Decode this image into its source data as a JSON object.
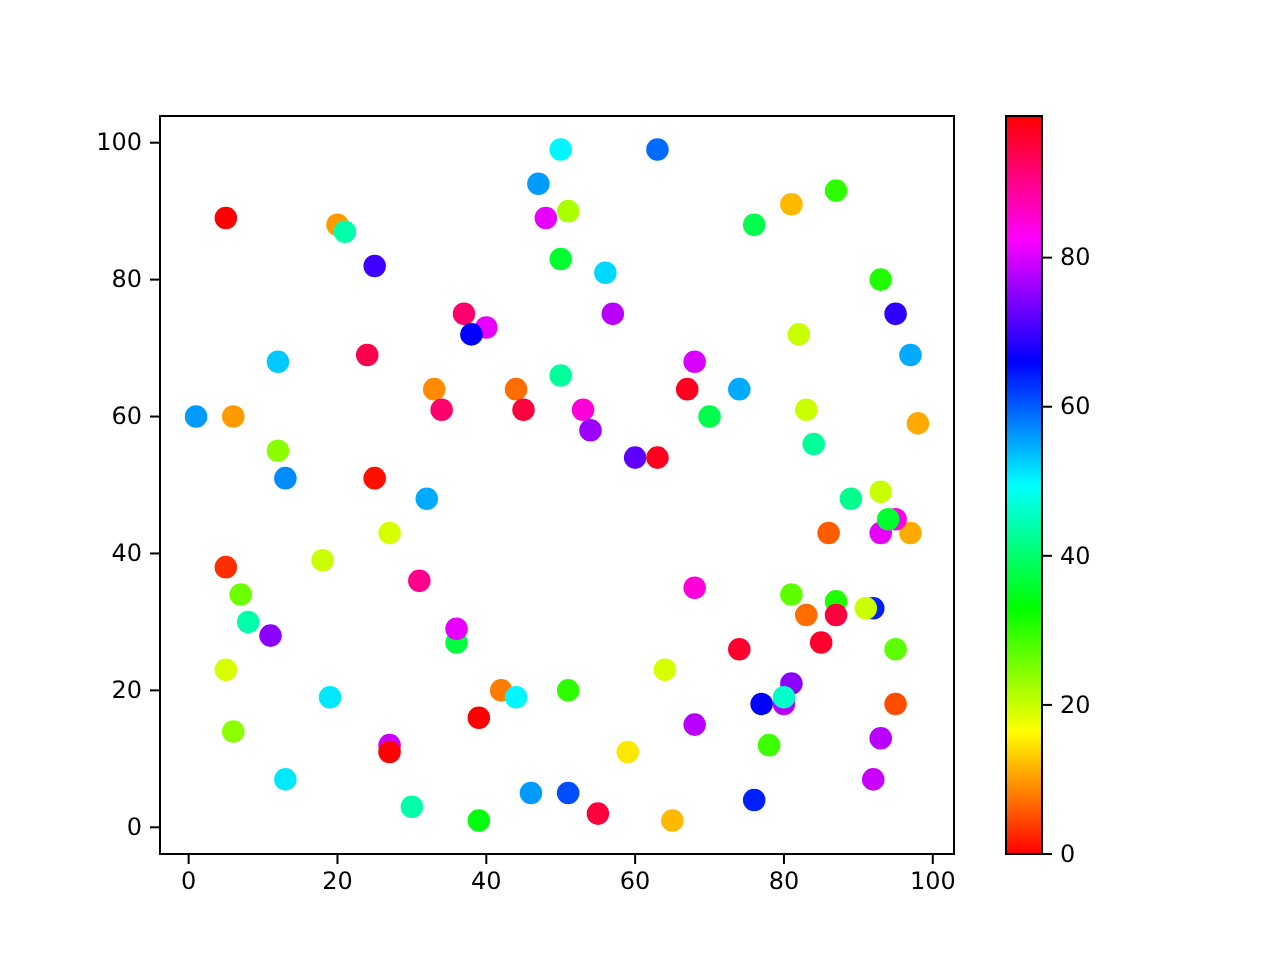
{
  "chart_data": {
    "type": "scatter",
    "x": [
      5,
      20,
      21,
      25,
      37,
      40,
      38,
      12,
      24,
      1,
      6,
      33,
      34,
      44,
      45,
      12,
      13,
      25,
      32,
      50,
      47,
      48,
      50,
      50,
      51,
      63,
      56,
      57,
      76,
      81,
      87,
      93,
      95,
      82,
      97,
      68,
      67,
      74,
      70,
      53,
      54,
      60,
      63,
      83,
      84,
      98,
      89,
      93,
      5,
      18,
      27,
      7,
      8,
      11,
      31,
      36,
      36,
      5,
      19,
      42,
      44,
      39,
      6,
      27,
      27,
      13,
      30,
      39,
      46,
      51,
      51,
      55,
      65,
      59,
      64,
      68,
      68,
      74,
      76,
      77,
      78,
      81,
      81,
      80,
      80,
      83,
      85,
      86,
      87,
      87,
      92,
      91,
      95,
      95,
      93,
      92,
      93,
      97,
      95,
      94
    ],
    "values": [
      89,
      88,
      87,
      82,
      75,
      73,
      72,
      68,
      69,
      60,
      60,
      64,
      61,
      64,
      61,
      55,
      51,
      51,
      48,
      99,
      94,
      89,
      83,
      66,
      90,
      99,
      81,
      75,
      88,
      91,
      93,
      80,
      75,
      72,
      69,
      68,
      64,
      64,
      60,
      61,
      58,
      54,
      54,
      61,
      56,
      59,
      48,
      49,
      38,
      39,
      43,
      34,
      30,
      28,
      36,
      27,
      29,
      23,
      19,
      20,
      19,
      16,
      14,
      12,
      11,
      7,
      3,
      1,
      5,
      5,
      20,
      2,
      1,
      11,
      23,
      35,
      15,
      26,
      4,
      18,
      12,
      34,
      21,
      18,
      19,
      31,
      27,
      43,
      33,
      31,
      32,
      32,
      26,
      18,
      13,
      7,
      43,
      43,
      45,
      45
    ],
    "cvalues": [
      0,
      10,
      44,
      70,
      92,
      81,
      66,
      53,
      94,
      56,
      10,
      9,
      92,
      7,
      95,
      24,
      57,
      1,
      55,
      50,
      56,
      81,
      36,
      43,
      22,
      59,
      52,
      78,
      38,
      12,
      30,
      31,
      69,
      20,
      55,
      80,
      97,
      55,
      38,
      85,
      76,
      72,
      97,
      20,
      43,
      11,
      42,
      20,
      3,
      20,
      19,
      26,
      44,
      75,
      90,
      37,
      81,
      19,
      51,
      8,
      50,
      0,
      24,
      79,
      0,
      51,
      44,
      34,
      56,
      61,
      30,
      95,
      12,
      15,
      19,
      85,
      78,
      96,
      64,
      66,
      29,
      27,
      75,
      78,
      46,
      7,
      96,
      6,
      31,
      95,
      64,
      20,
      27,
      5,
      78,
      79,
      81,
      11,
      84,
      36
    ],
    "xlim": [
      -3.85,
      102.85
    ],
    "ylim": [
      -3.9,
      103.9
    ],
    "xticks": [
      0,
      20,
      40,
      60,
      80,
      100
    ],
    "yticks": [
      0,
      20,
      40,
      60,
      80,
      100
    ],
    "clim": [
      0,
      99
    ],
    "cticks": [
      0,
      20,
      40,
      60,
      80
    ],
    "marker": "circle",
    "grid": false
  }
}
